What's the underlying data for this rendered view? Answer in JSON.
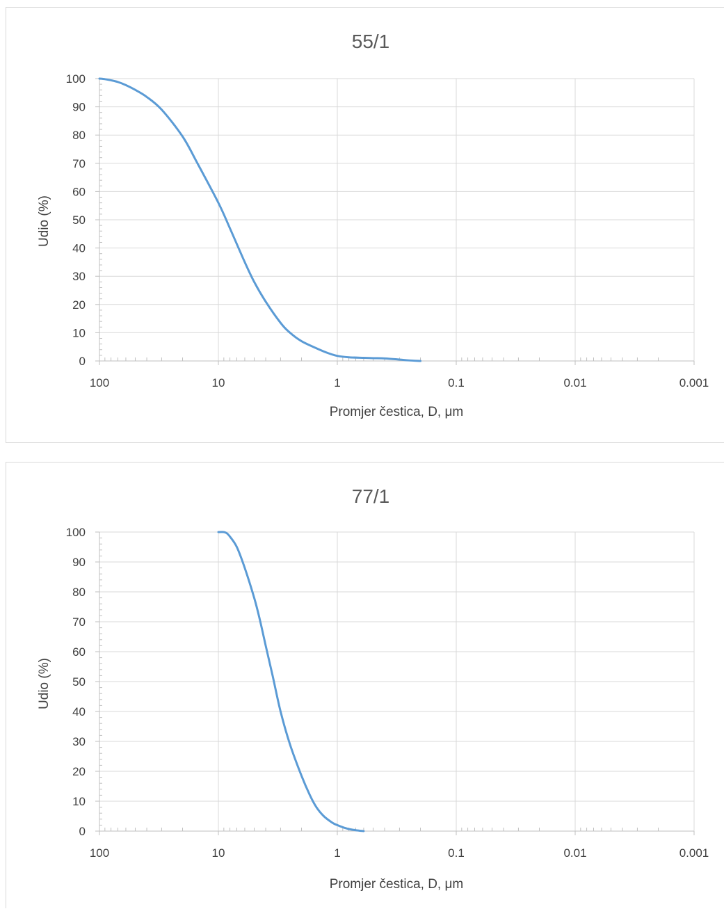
{
  "chart_data": [
    {
      "type": "line",
      "title": "55/1",
      "xlabel": "Promjer čestica, D, μm",
      "ylabel": "Udio (%)",
      "x_scale": "log",
      "x_reversed": true,
      "xlim": [
        100,
        0.001
      ],
      "ylim": [
        0,
        100
      ],
      "x_ticks": [
        "100",
        "10",
        "1",
        "0.1",
        "0.01",
        "0.001"
      ],
      "y_ticks": [
        "0",
        "10",
        "20",
        "30",
        "40",
        "50",
        "60",
        "70",
        "80",
        "90",
        "100"
      ],
      "grid": true,
      "legend": "none",
      "series": [
        {
          "color": "#5b9bd5",
          "x": [
            100,
            90,
            80,
            70,
            60,
            50,
            40,
            30,
            20,
            15,
            10,
            8,
            6,
            5,
            4,
            3,
            2.5,
            2,
            1.5,
            1.2,
            1,
            0.8,
            0.6,
            0.5,
            0.4,
            0.3,
            0.25,
            0.2
          ],
          "y": [
            100,
            99.8,
            99.4,
            98.8,
            97.7,
            96,
            93.5,
            89,
            79.5,
            70,
            56,
            47,
            35,
            28,
            21,
            13.5,
            10,
            7,
            4.5,
            2.8,
            1.8,
            1.3,
            1.1,
            1,
            0.9,
            0.5,
            0.2,
            0
          ]
        }
      ]
    },
    {
      "type": "line",
      "title": "77/1",
      "xlabel": "Promjer čestica, D, μm",
      "ylabel": "Udio (%)",
      "x_scale": "log",
      "x_reversed": true,
      "xlim": [
        100,
        0.001
      ],
      "ylim": [
        0,
        100
      ],
      "x_ticks": [
        "100",
        "10",
        "1",
        "0.1",
        "0.01",
        "0.001"
      ],
      "y_ticks": [
        "0",
        "10",
        "20",
        "30",
        "40",
        "50",
        "60",
        "70",
        "80",
        "90",
        "100"
      ],
      "grid": true,
      "legend": "none",
      "series": [
        {
          "color": "#5b9bd5",
          "x": [
            10,
            9,
            8.5,
            8,
            7,
            6,
            5,
            4.5,
            4,
            3.5,
            3,
            2.5,
            2,
            1.7,
            1.5,
            1.3,
            1.1,
            1,
            0.9,
            0.8,
            0.7,
            0.6
          ],
          "y": [
            100,
            100,
            99.6,
            98.5,
            95,
            88,
            78,
            71,
            62,
            52,
            40,
            29,
            18.5,
            12,
            8,
            5,
            2.8,
            2,
            1.3,
            0.7,
            0.3,
            0
          ]
        }
      ]
    }
  ]
}
